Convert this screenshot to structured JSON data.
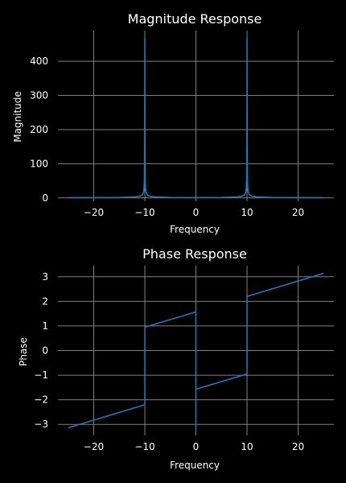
{
  "colors": {
    "background": "#000000",
    "grid": "#808080",
    "line": "#1f77b4",
    "text": "#ffffff"
  },
  "chart_data": [
    {
      "type": "line",
      "title": "Magnitude Response",
      "xlabel": "Frequency",
      "ylabel": "Magnitude",
      "xlim": [
        -27,
        27
      ],
      "ylim": [
        -10,
        490
      ],
      "xticks": [
        -20,
        -10,
        0,
        10,
        20
      ],
      "xtick_labels": [
        "−20",
        "−10",
        "0",
        "10",
        "20"
      ],
      "yticks": [
        0,
        100,
        200,
        300,
        400
      ],
      "ytick_labels": [
        "0",
        "100",
        "200",
        "300",
        "400"
      ],
      "grid": true,
      "series": [
        {
          "x": [
            -25,
            -20,
            -15,
            -12,
            -11,
            -10.6,
            -10.4,
            -10.25,
            -10.15,
            -10.08,
            -10.03,
            -10,
            -9.97,
            -9.92,
            -9.85,
            -9.75,
            -9.6,
            -9.4,
            -9,
            -8,
            -5,
            0,
            5,
            8,
            9,
            9.4,
            9.6,
            9.75,
            9.85,
            9.92,
            9.97,
            10,
            10.03,
            10.08,
            10.15,
            10.25,
            10.4,
            10.6,
            11,
            12,
            15,
            20,
            25
          ],
          "y": [
            0.5,
            0.7,
            1.2,
            2.5,
            4.5,
            7.5,
            11,
            17,
            28,
            55,
            150,
            468,
            150,
            55,
            28,
            17,
            11,
            7.5,
            4.5,
            2.5,
            1.2,
            0.8,
            1.2,
            2.5,
            4.5,
            7.5,
            11,
            17,
            28,
            55,
            150,
            468,
            150,
            55,
            28,
            17,
            11,
            7.5,
            4.5,
            2.5,
            1.2,
            0.7,
            0.5
          ]
        }
      ]
    },
    {
      "type": "line",
      "title": "Phase Response",
      "xlabel": "Frequency",
      "ylabel": "Phase",
      "xlim": [
        -27,
        27
      ],
      "ylim": [
        -3.45,
        3.45
      ],
      "xticks": [
        -20,
        -10,
        0,
        10,
        20
      ],
      "xtick_labels": [
        "−20",
        "−10",
        "0",
        "10",
        "20"
      ],
      "yticks": [
        -3,
        -2,
        -1,
        0,
        1,
        2,
        3
      ],
      "ytick_labels": [
        "−3",
        "−2",
        "−1",
        "0",
        "1",
        "2",
        "3"
      ],
      "grid": true,
      "series": [
        {
          "x": [
            -25,
            -10,
            -10,
            0,
            0,
            0,
            10,
            10,
            25
          ],
          "y": [
            -3.14,
            -2.2,
            0.95,
            1.57,
            -3.14,
            -1.57,
            -0.95,
            2.2,
            3.14
          ]
        }
      ]
    }
  ]
}
